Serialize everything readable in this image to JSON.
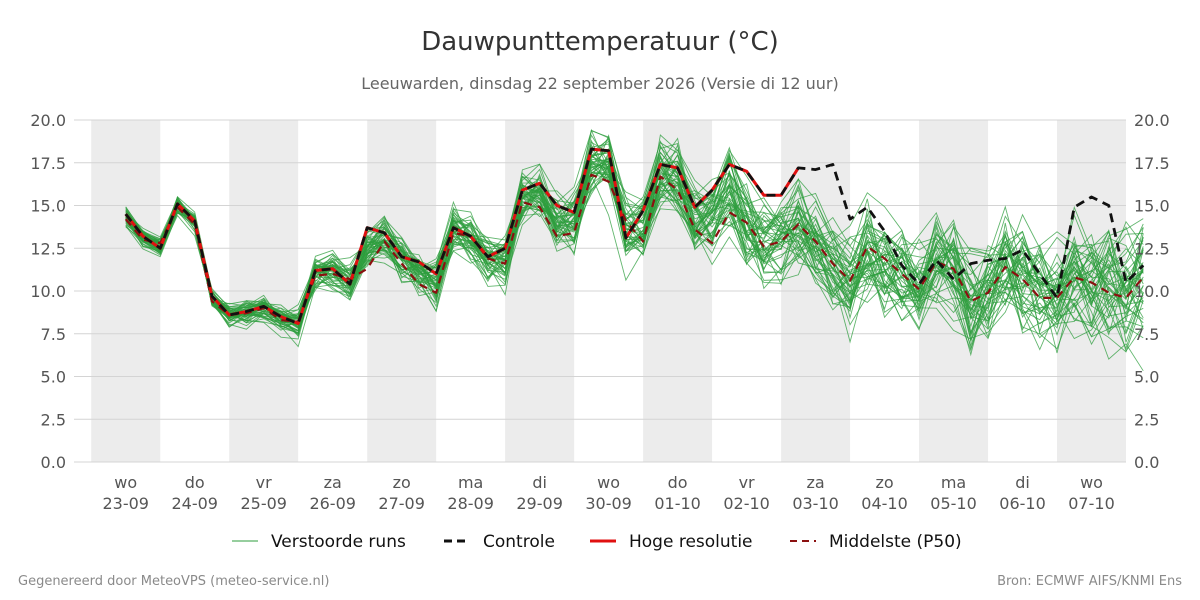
{
  "chart_data": {
    "type": "line",
    "title": "Dauwpunttemperatuur (°C)",
    "subtitle": "Leeuwarden, dinsdag 22 september 2026 (Versie di 12 uur)",
    "ylim": [
      0,
      20
    ],
    "yticks": [
      "0.0",
      "2.5",
      "5.0",
      "7.5",
      "10.0",
      "12.5",
      "15.0",
      "17.5",
      "20.0"
    ],
    "x_range_days": [
      -0.75,
      14.5
    ],
    "x_day_labels": [
      {
        "day": "wo",
        "date": "23-09"
      },
      {
        "day": "do",
        "date": "24-09"
      },
      {
        "day": "vr",
        "date": "25-09"
      },
      {
        "day": "za",
        "date": "26-09"
      },
      {
        "day": "zo",
        "date": "27-09"
      },
      {
        "day": "ma",
        "date": "28-09"
      },
      {
        "day": "di",
        "date": "29-09"
      },
      {
        "day": "wo",
        "date": "30-09"
      },
      {
        "day": "do",
        "date": "01-10"
      },
      {
        "day": "vr",
        "date": "02-10"
      },
      {
        "day": "za",
        "date": "03-10"
      },
      {
        "day": "zo",
        "date": "04-10"
      },
      {
        "day": "ma",
        "date": "05-10"
      },
      {
        "day": "di",
        "date": "06-10"
      },
      {
        "day": "wo",
        "date": "07-10"
      }
    ],
    "grid": "horizontal",
    "legend_position": "bottom",
    "ensemble_member_count": 50,
    "series": [
      {
        "name": "Controle",
        "color": "#111111",
        "style": "dashed",
        "y": [
          14.5,
          13.2,
          12.5,
          15.1,
          14.1,
          9.7,
          8.6,
          8.8,
          9.1,
          8.5,
          8.1,
          11.2,
          11.3,
          10.4,
          13.7,
          13.4,
          12.0,
          11.7,
          11.0,
          13.7,
          13.2,
          12.0,
          12.5,
          15.9,
          16.3,
          15.0,
          14.6,
          18.3,
          18.2,
          13.1,
          14.7,
          17.4,
          17.2,
          14.9,
          15.9,
          17.4,
          17.0,
          15.6,
          15.6,
          17.2,
          17.1,
          17.4,
          14.2,
          14.9,
          13.5,
          11.5,
          10.4,
          11.8,
          10.7,
          11.6,
          11.8,
          11.9,
          12.4,
          11.0,
          9.6,
          14.9,
          15.5,
          15.0,
          10.5,
          11.5
        ]
      },
      {
        "name": "Hoge resolutie",
        "color": "#e01010",
        "style": "solid",
        "y": [
          14.5,
          13.2,
          12.5,
          15.1,
          14.1,
          9.7,
          8.6,
          8.8,
          9.1,
          8.5,
          8.1,
          11.2,
          11.3,
          10.4,
          13.7,
          13.4,
          12.0,
          11.7,
          11.0,
          13.7,
          13.2,
          12.0,
          12.5,
          15.9,
          16.3,
          15.0,
          14.6,
          18.3,
          18.2,
          13.1,
          14.7,
          17.4,
          17.2,
          14.9,
          15.9,
          17.4,
          17.0,
          15.6,
          15.6,
          17.2
        ]
      },
      {
        "name": "Middelste (P50)",
        "color": "#8b1010",
        "style": "dashed",
        "y": [
          14.2,
          13.0,
          12.8,
          14.9,
          13.9,
          9.4,
          8.6,
          8.7,
          9.0,
          8.3,
          8.2,
          10.9,
          11.0,
          10.7,
          11.3,
          12.9,
          11.6,
          10.4,
          9.9,
          13.4,
          13.2,
          11.9,
          11.6,
          15.2,
          14.9,
          13.2,
          13.4,
          16.8,
          16.4,
          14.1,
          12.9,
          16.7,
          15.9,
          13.6,
          12.8,
          14.6,
          14.0,
          12.6,
          12.9,
          13.9,
          12.9,
          11.6,
          10.6,
          12.6,
          11.9,
          11.0,
          10.1,
          11.7,
          11.3,
          9.4,
          9.9,
          11.4,
          10.7,
          9.6,
          9.6,
          10.8,
          10.5,
          9.9,
          9.6,
          10.8
        ]
      }
    ],
    "ensemble": {
      "name": "Verstoorde runs",
      "color": "#2e9e3e",
      "style": "thin"
    }
  },
  "legend": {
    "items": [
      {
        "label": "Verstoorde runs"
      },
      {
        "label": "Controle"
      },
      {
        "label": "Hoge resolutie"
      },
      {
        "label": "Middelste (P50)"
      }
    ]
  },
  "footer": {
    "left": "Gegenereerd door MeteoVPS (meteo-service.nl)",
    "right": "Bron: ECMWF AIFS/KNMI Ens"
  }
}
